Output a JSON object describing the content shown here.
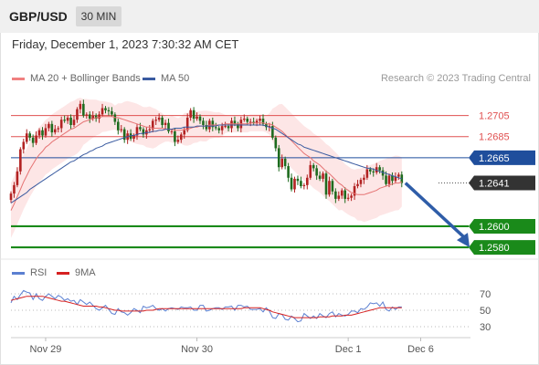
{
  "header": {
    "symbol": "GBP/USD",
    "timeframe": "30 MIN",
    "datetime": "Friday, December 1, 2023 7:30:32 AM CET"
  },
  "legend": {
    "ma20_label": "MA 20 + Bollinger Bands",
    "ma50_label": "MA 50",
    "credit": "Research © 2023 Trading Central"
  },
  "rsi_legend": {
    "rsi_label": "RSI",
    "ma_label": "9MA"
  },
  "colors": {
    "bull": "#b22222",
    "bear": "#1e6b1e",
    "ma20": "#e57373",
    "ma50": "#3a5ba0",
    "band_fill": "#fde3e3",
    "resistance": "#e05050",
    "pivot": "#1f4e9c",
    "support": "#1a8a1a",
    "arrow": "#2f5da8",
    "rsi": "#5b7fd1",
    "rsi_ma": "#d62020"
  },
  "chart_data": [
    {
      "type": "candlestick",
      "title": "GBP/USD",
      "ylim": [
        2574,
        2728
      ],
      "levels": [
        {
          "label": "1.2705",
          "value": 2705,
          "kind": "resistance"
        },
        {
          "label": "1.2685",
          "value": 2685,
          "kind": "resistance"
        },
        {
          "label": "1.2665",
          "value": 2665,
          "kind": "pivot"
        },
        {
          "label": "1.2641",
          "value": 2641,
          "kind": "last"
        },
        {
          "label": "1.2600",
          "value": 2600,
          "kind": "support"
        },
        {
          "label": "1.2580",
          "value": 2580,
          "kind": "support"
        }
      ],
      "x_ticks": [
        {
          "label": "Nov 29",
          "index": 11
        },
        {
          "label": "Nov 30",
          "index": 59
        },
        {
          "label": "Dec 1",
          "index": 107
        },
        {
          "label": "Dec 6",
          "index": 130
        }
      ],
      "n_slots": 136,
      "close": [
        2631,
        2639,
        2652,
        2673,
        2680,
        2688,
        2684,
        2679,
        2686,
        2691,
        2686,
        2693,
        2697,
        2689,
        2692,
        2693,
        2701,
        2700,
        2703,
        2696,
        2701,
        2711,
        2716,
        2705,
        2706,
        2702,
        2705,
        2702,
        2706,
        2712,
        2710,
        2709,
        2706,
        2699,
        2691,
        2692,
        2682,
        2688,
        2683,
        2686,
        2694,
        2692,
        2687,
        2691,
        2692,
        2700,
        2701,
        2703,
        2696,
        2698,
        2690,
        2690,
        2680,
        2682,
        2687,
        2691,
        2703,
        2710,
        2702,
        2704,
        2700,
        2696,
        2692,
        2700,
        2694,
        2693,
        2691,
        2695,
        2695,
        2693,
        2700,
        2697,
        2693,
        2701,
        2702,
        2699,
        2699,
        2698,
        2700,
        2702,
        2697,
        2694,
        2695,
        2684,
        2674,
        2656,
        2664,
        2657,
        2646,
        2635,
        2645,
        2643,
        2638,
        2639,
        2646,
        2658,
        2655,
        2648,
        2645,
        2650,
        2630,
        2643,
        2633,
        2626,
        2629,
        2634,
        2626,
        2627,
        2629,
        2638,
        2640,
        2644,
        2646,
        2654,
        2652,
        2651,
        2656,
        2653,
        2648,
        2640,
        2648,
        2643,
        2647,
        2649,
        2641
      ],
      "ma20": [
        2615,
        2621,
        2628,
        2635,
        2642,
        2648,
        2654,
        2659,
        2664,
        2668,
        2671,
        2675,
        2677,
        2680,
        2682,
        2684,
        2686,
        2688,
        2690,
        2692,
        2693,
        2695,
        2697,
        2699,
        2700,
        2701,
        2702,
        2703,
        2703,
        2704,
        2704,
        2704,
        2704,
        2703,
        2703,
        2702,
        2701,
        2700,
        2699,
        2698,
        2697,
        2696,
        2695,
        2694,
        2694,
        2693,
        2693,
        2693,
        2693,
        2692,
        2692,
        2692,
        2691,
        2691,
        2691,
        2692,
        2692,
        2693,
        2694,
        2694,
        2695,
        2695,
        2695,
        2696,
        2696,
        2696,
        2696,
        2696,
        2697,
        2697,
        2697,
        2697,
        2697,
        2697,
        2697,
        2697,
        2698,
        2698,
        2698,
        2698,
        2698,
        2697,
        2697,
        2696,
        2694,
        2692,
        2690,
        2687,
        2684,
        2681,
        2678,
        2675,
        2672,
        2669,
        2667,
        2665,
        2662,
        2660,
        2658,
        2655,
        2652,
        2650,
        2647,
        2644,
        2641,
        2639,
        2636,
        2634,
        2632,
        2631,
        2630,
        2630,
        2630,
        2631,
        2632,
        2633,
        2634,
        2636,
        2637,
        2638,
        2639,
        2640,
        2641,
        2641,
        2642
      ],
      "ma50": [
        2622,
        2624,
        2626,
        2628,
        2630,
        2632,
        2635,
        2637,
        2639,
        2641,
        2643,
        2645,
        2647,
        2649,
        2651,
        2653,
        2655,
        2657,
        2659,
        2661,
        2662,
        2664,
        2666,
        2668,
        2669,
        2671,
        2672,
        2674,
        2675,
        2676,
        2678,
        2679,
        2680,
        2681,
        2682,
        2683,
        2684,
        2685,
        2686,
        2686,
        2687,
        2688,
        2688,
        2689,
        2689,
        2690,
        2690,
        2691,
        2691,
        2692,
        2692,
        2692,
        2693,
        2693,
        2693,
        2694,
        2694,
        2694,
        2694,
        2695,
        2695,
        2695,
        2695,
        2695,
        2695,
        2695,
        2696,
        2696,
        2696,
        2696,
        2696,
        2696,
        2696,
        2696,
        2696,
        2696,
        2696,
        2696,
        2696,
        2696,
        2696,
        2695,
        2694,
        2693,
        2692,
        2690,
        2688,
        2686,
        2684,
        2682,
        2680,
        2678,
        2677,
        2675,
        2674,
        2673,
        2672,
        2671,
        2670,
        2669,
        2668,
        2667,
        2666,
        2665,
        2664,
        2663,
        2662,
        2661,
        2660,
        2659,
        2658,
        2657,
        2656,
        2655,
        2655,
        2654,
        2653,
        2652,
        2651,
        2650,
        2649,
        2648,
        2647,
        2646,
        2645
      ]
    },
    {
      "type": "line",
      "title": "RSI",
      "ylim": [
        20,
        80
      ],
      "y_ticks": [
        30,
        50,
        70
      ],
      "series": [
        {
          "name": "RSI",
          "values": [
            59,
            67,
            63,
            69,
            74,
            72,
            71,
            63,
            70,
            64,
            62,
            67,
            70,
            67,
            64,
            68,
            66,
            62,
            64,
            61,
            62,
            57,
            63,
            60,
            57,
            60,
            56,
            52,
            50,
            53,
            56,
            51,
            46,
            45,
            52,
            48,
            47,
            44,
            47,
            52,
            50,
            47,
            55,
            53,
            54,
            56,
            52,
            50,
            52,
            49,
            52,
            53,
            52,
            51,
            54,
            53,
            53,
            54,
            50,
            50,
            56,
            56,
            49,
            50,
            52,
            53,
            53,
            51,
            54,
            54,
            55,
            50,
            56,
            56,
            54,
            55,
            51,
            51,
            51,
            52,
            48,
            53,
            49,
            41,
            40,
            46,
            45,
            39,
            38,
            43,
            40,
            36,
            37,
            46,
            43,
            40,
            43,
            40,
            46,
            43,
            41,
            46,
            48,
            42,
            46,
            44,
            43,
            45,
            49,
            49,
            47,
            52,
            51,
            54,
            59,
            58,
            59,
            55,
            60,
            51,
            49,
            54,
            51,
            54,
            54
          ]
        },
        {
          "name": "9MA",
          "values": [
            62,
            63,
            64,
            65,
            66,
            67,
            67,
            67,
            67,
            67,
            67,
            66,
            65,
            64,
            63,
            62,
            61,
            61,
            60,
            59,
            58,
            57,
            56,
            55,
            55,
            55,
            55,
            55,
            54,
            54,
            53,
            52,
            51,
            50,
            50,
            49,
            49,
            49,
            49,
            49,
            49,
            49,
            49,
            50,
            50,
            50,
            51,
            52,
            52,
            52,
            52,
            52,
            52,
            52,
            52,
            52,
            52,
            52,
            52,
            52,
            52,
            52,
            52,
            52,
            52,
            52,
            52,
            52,
            52,
            52,
            52,
            52,
            52,
            52,
            53,
            53,
            53,
            53,
            53,
            53,
            52,
            51,
            50,
            48,
            47,
            46,
            45,
            44,
            43,
            42,
            41,
            41,
            41,
            41,
            41,
            41,
            41,
            41,
            42,
            42,
            42,
            42,
            43,
            43,
            43,
            43,
            44,
            44,
            44,
            45,
            46,
            47,
            48,
            49,
            50,
            51,
            52,
            53,
            53,
            53,
            53,
            53,
            53,
            53,
            53
          ]
        }
      ]
    }
  ]
}
